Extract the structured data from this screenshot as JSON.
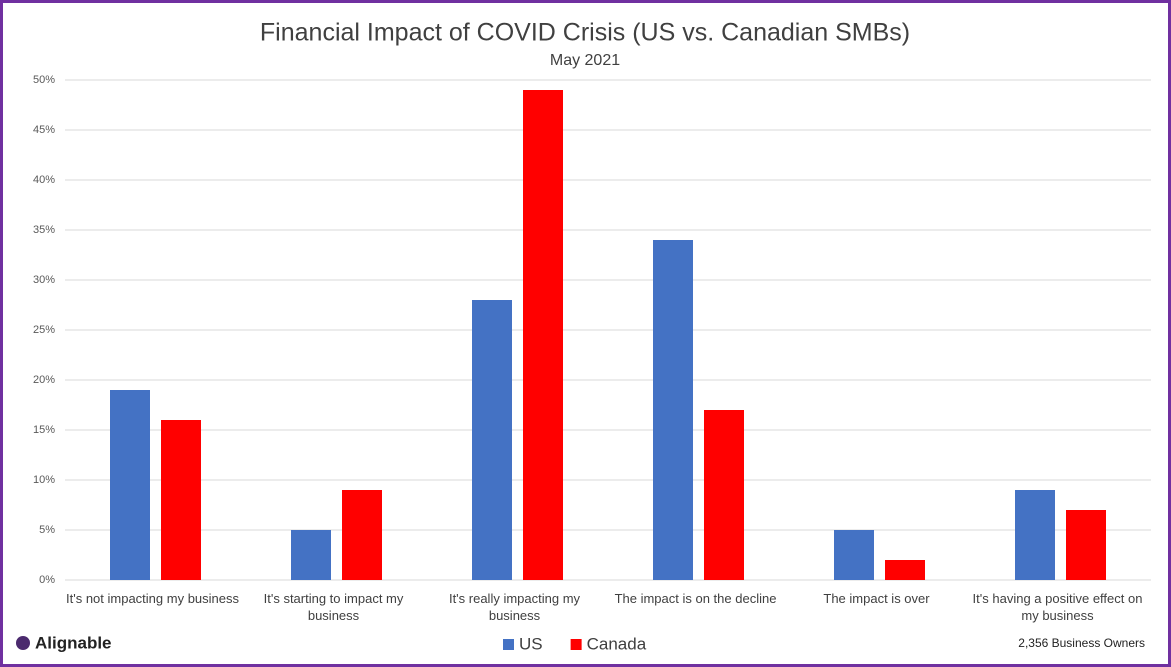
{
  "brand": "Alignable",
  "chart_data": {
    "type": "bar",
    "title": "Financial Impact of COVID Crisis (US vs. Canadian SMBs)",
    "subtitle": "May 2021",
    "categories": [
      "It's not impacting my business",
      "It's starting to impact my business",
      "It's really impacting my business",
      "The impact is on the decline",
      "The impact is over",
      "It's having a positive effect on my business"
    ],
    "series": [
      {
        "name": "US",
        "color": "#4472c4",
        "values": [
          19,
          5,
          28,
          34,
          5,
          9
        ]
      },
      {
        "name": "Canada",
        "color": "#ff0000",
        "values": [
          16,
          9,
          49,
          17,
          2,
          7
        ]
      }
    ],
    "ylim": [
      0,
      50
    ],
    "yticks": [
      {
        "value": 0,
        "label": "0%"
      },
      {
        "value": 5,
        "label": "5%"
      },
      {
        "value": 10,
        "label": "10%"
      },
      {
        "value": 15,
        "label": "15%"
      },
      {
        "value": 20,
        "label": "20%"
      },
      {
        "value": 25,
        "label": "25%"
      },
      {
        "value": 30,
        "label": "30%"
      },
      {
        "value": 35,
        "label": "35%"
      },
      {
        "value": 40,
        "label": "40%"
      },
      {
        "value": 45,
        "label": "45%"
      },
      {
        "value": 50,
        "label": "50%"
      }
    ],
    "grid": true,
    "legend": "bottom",
    "annotation": "2,356 Business Owners"
  }
}
